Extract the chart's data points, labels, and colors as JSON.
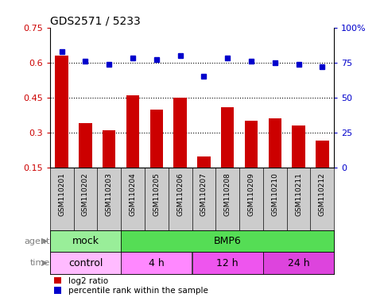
{
  "title": "GDS2571 / 5233",
  "samples": [
    "GSM110201",
    "GSM110202",
    "GSM110203",
    "GSM110204",
    "GSM110205",
    "GSM110206",
    "GSM110207",
    "GSM110208",
    "GSM110209",
    "GSM110210",
    "GSM110211",
    "GSM110212"
  ],
  "log2_ratio": [
    0.63,
    0.34,
    0.31,
    0.46,
    0.4,
    0.45,
    0.2,
    0.41,
    0.35,
    0.36,
    0.33,
    0.265
  ],
  "percentile": [
    83,
    76,
    74,
    78,
    77,
    80,
    65,
    78,
    76,
    75,
    74,
    72
  ],
  "bar_color": "#cc0000",
  "dot_color": "#0000cc",
  "ylim_left": [
    0.15,
    0.75
  ],
  "ylim_right": [
    0,
    100
  ],
  "yticks_left": [
    0.15,
    0.3,
    0.45,
    0.6,
    0.75
  ],
  "yticks_right": [
    0,
    25,
    50,
    75,
    100
  ],
  "hlines": [
    0.3,
    0.45,
    0.6
  ],
  "agent_groups": [
    {
      "text": "mock",
      "start": 0,
      "end": 3,
      "color": "#99ee99"
    },
    {
      "text": "BMP6",
      "start": 3,
      "end": 12,
      "color": "#55dd55"
    }
  ],
  "time_groups": [
    {
      "text": "control",
      "start": 0,
      "end": 3,
      "color": "#ffbbff"
    },
    {
      "text": "4 h",
      "start": 3,
      "end": 6,
      "color": "#ff88ff"
    },
    {
      "text": "12 h",
      "start": 6,
      "end": 9,
      "color": "#ee55ee"
    },
    {
      "text": "24 h",
      "start": 9,
      "end": 12,
      "color": "#dd44dd"
    }
  ],
  "legend_red": "log2 ratio",
  "legend_blue": "percentile rank within the sample",
  "bg_color": "#ffffff",
  "sample_bg": "#cccccc"
}
